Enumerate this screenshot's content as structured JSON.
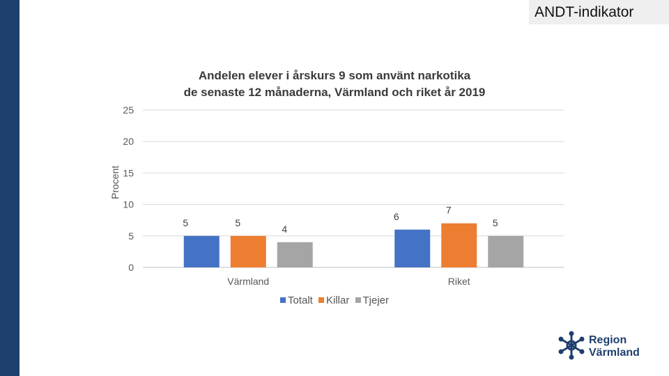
{
  "slide": {
    "tag": "ANDT-indikator"
  },
  "logo": {
    "line1": "Region",
    "line2": "Värmland"
  },
  "colors": {
    "sidebar": "#1f3f6e",
    "totalt": "#4472c4",
    "killar": "#ed7d31",
    "tjejer": "#a5a5a5"
  },
  "chart_data": {
    "type": "bar",
    "title_lines": [
      "Andelen elever i årskurs 9 som använt narkotika",
      "de senaste 12 månaderna, Värmland och riket år 2019"
    ],
    "xlabel": "",
    "ylabel": "Procent",
    "ylim": [
      0,
      25
    ],
    "yticks": [
      "0",
      "5",
      "10",
      "15",
      "20",
      "25"
    ],
    "ytick_values": [
      0,
      5,
      10,
      15,
      20,
      25
    ],
    "grid": true,
    "legend_position": "bottom",
    "categories": [
      "Värmland",
      "Riket"
    ],
    "series": [
      {
        "name": "Totalt",
        "values": [
          5,
          6
        ],
        "labels": [
          "5",
          "6"
        ],
        "color": "#4472c4"
      },
      {
        "name": "Killar",
        "values": [
          5,
          7
        ],
        "labels": [
          "5",
          "7"
        ],
        "color": "#ed7d31"
      },
      {
        "name": "Tjejer",
        "values": [
          4,
          5
        ],
        "labels": [
          "4",
          "5"
        ],
        "color": "#a5a5a5"
      }
    ]
  }
}
